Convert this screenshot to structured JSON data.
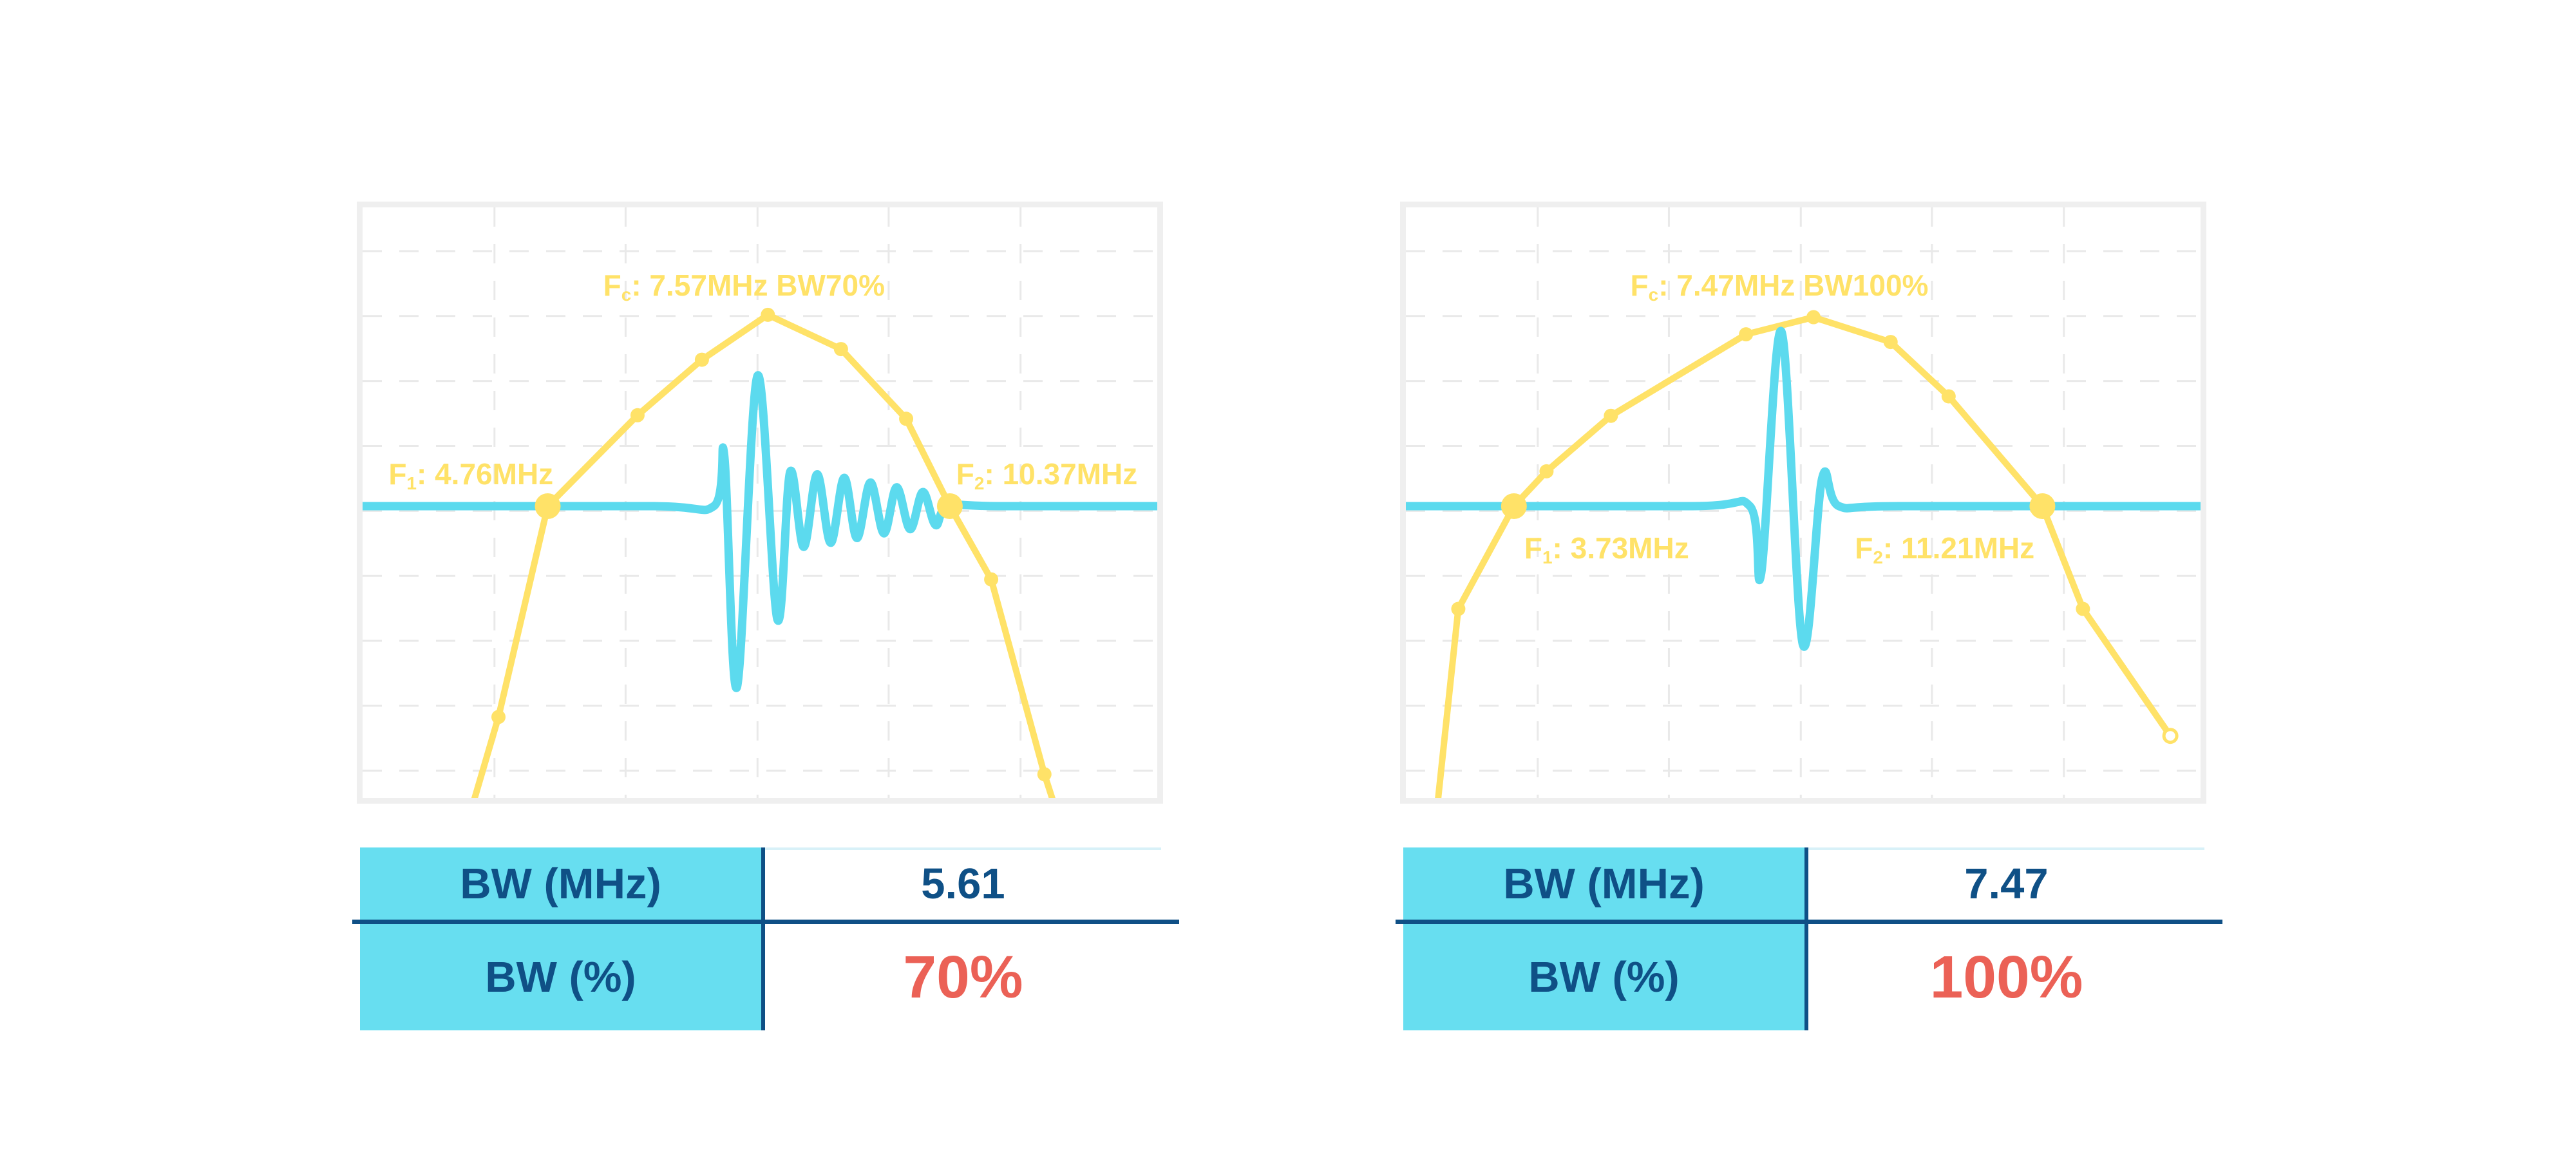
{
  "colors": {
    "background": "#FFFFFF",
    "spectrum_yellow": "#FFE268",
    "pulse_cyan": "#5CDAEE",
    "navy": "#0F5086",
    "percent_red": "#EB6156",
    "frame_gray": "#EFEFEF",
    "grid_gray": "#E9E9E9",
    "table_fill_cyan": "#67DEF0",
    "value_top_line": "#D8F1F8"
  },
  "charts": [
    {
      "fc": {
        "pre": "F",
        "sub": "c",
        "rest": ": 7.57MHz BW70%"
      },
      "f1": {
        "pre": "F",
        "sub": "1",
        "rest": ": 4.76MHz"
      },
      "f2": {
        "pre": "F",
        "sub": "2",
        "rest": ": 10.37MHz"
      },
      "table": {
        "bw_mhz_label": "BW (MHz)",
        "bw_mhz_value": "5.61",
        "bw_pct_label": "BW (%)",
        "bw_pct_value": "70%"
      }
    },
    {
      "fc": {
        "pre": "F",
        "sub": "c",
        "rest": ": 7.47MHz BW100%"
      },
      "f1": {
        "pre": "F",
        "sub": "1",
        "rest": ": 3.73MHz"
      },
      "f2": {
        "pre": "F",
        "sub": "2",
        "rest": ": 11.21MHz"
      },
      "table": {
        "bw_mhz_label": "BW (MHz)",
        "bw_mhz_value": "7.47",
        "bw_pct_label": "BW (%)",
        "bw_pct_value": "100%"
      }
    }
  ],
  "chart_data": [
    {
      "type": "line",
      "title": "Fc: 7.57MHz BW70%",
      "center_frequency_mhz": 7.57,
      "f1_mhz": 4.76,
      "f2_mhz": 10.37,
      "bandwidth_mhz": 5.61,
      "bandwidth_pct": 70,
      "grid": {
        "v_fracs": [
          0.166,
          0.331,
          0.497,
          0.662,
          0.828
        ],
        "h_fracs": [
          0.074,
          0.184,
          0.294,
          0.404,
          0.514,
          0.624,
          0.734,
          0.844,
          0.954
        ],
        "dashed": true
      },
      "baseline_y": 0.506,
      "series": [
        {
          "name": "frequency-spectrum",
          "color": "#FFE268",
          "points": [
            [
              0.128,
              1.06,
              null
            ],
            [
              0.171,
              0.863,
              "s"
            ],
            [
              0.233,
              0.506,
              "b"
            ],
            [
              0.346,
              0.352,
              "s"
            ],
            [
              0.427,
              0.258,
              "s"
            ],
            [
              0.51,
              0.182,
              "s"
            ],
            [
              0.602,
              0.24,
              "s"
            ],
            [
              0.684,
              0.358,
              "s"
            ],
            [
              0.739,
              0.506,
              "b"
            ],
            [
              0.791,
              0.63,
              "s"
            ],
            [
              0.858,
              0.96,
              "s"
            ],
            [
              0.882,
              1.06,
              null
            ]
          ]
        },
        {
          "name": "rf-pulse",
          "color": "#5CDAEE",
          "points": [
            [
              0.0,
              0.506
            ],
            [
              0.36,
              0.506
            ],
            [
              0.442,
              0.506
            ],
            [
              0.455,
              0.419
            ],
            [
              0.471,
              0.813
            ],
            [
              0.497,
              0.285
            ],
            [
              0.522,
              0.698
            ],
            [
              0.538,
              0.448
            ],
            [
              0.555,
              0.575
            ],
            [
              0.572,
              0.452
            ],
            [
              0.589,
              0.568
            ],
            [
              0.606,
              0.458
            ],
            [
              0.622,
              0.56
            ],
            [
              0.639,
              0.466
            ],
            [
              0.656,
              0.552
            ],
            [
              0.672,
              0.474
            ],
            [
              0.689,
              0.545
            ],
            [
              0.705,
              0.482
            ],
            [
              0.721,
              0.538
            ],
            [
              0.737,
              0.506
            ],
            [
              0.8,
              0.506
            ],
            [
              1.0,
              0.506
            ]
          ]
        }
      ],
      "annotations": {
        "fc": {
          "x": 0.48,
          "y": 0.104,
          "anchor": "center"
        },
        "f1": {
          "x": 0.24,
          "y": 0.423,
          "anchor": "right"
        },
        "f2": {
          "x": 0.747,
          "y": 0.423,
          "anchor": "left"
        }
      }
    },
    {
      "type": "line",
      "title": "Fc: 7.47MHz BW100%",
      "center_frequency_mhz": 7.47,
      "f1_mhz": 3.73,
      "f2_mhz": 11.21,
      "bandwidth_mhz": 7.47,
      "bandwidth_pct": 100,
      "grid": {
        "v_fracs": [
          0.166,
          0.331,
          0.497,
          0.662,
          0.828
        ],
        "h_fracs": [
          0.074,
          0.184,
          0.294,
          0.404,
          0.514,
          0.624,
          0.734,
          0.844,
          0.954
        ],
        "dashed": true
      },
      "baseline_y": 0.506,
      "series": [
        {
          "name": "frequency-spectrum",
          "color": "#FFE268",
          "points": [
            [
              0.036,
              1.06,
              null
            ],
            [
              0.066,
              0.68,
              "s"
            ],
            [
              0.136,
              0.506,
              "b"
            ],
            [
              0.177,
              0.447,
              "s"
            ],
            [
              0.258,
              0.353,
              "s"
            ],
            [
              0.428,
              0.215,
              "s"
            ],
            [
              0.513,
              0.186,
              "s"
            ],
            [
              0.61,
              0.228,
              "s"
            ],
            [
              0.683,
              0.32,
              "s"
            ],
            [
              0.801,
              0.506,
              "b"
            ],
            [
              0.852,
              0.68,
              "s"
            ],
            [
              0.962,
              0.895,
              "o"
            ]
          ]
        },
        {
          "name": "rf-pulse",
          "color": "#5CDAEE",
          "points": [
            [
              0.0,
              0.506
            ],
            [
              0.36,
              0.506
            ],
            [
              0.433,
              0.506
            ],
            [
              0.447,
              0.621
            ],
            [
              0.4725,
              0.21
            ],
            [
              0.4995,
              0.74
            ],
            [
              0.524,
              0.458
            ],
            [
              0.545,
              0.506
            ],
            [
              0.62,
              0.506
            ],
            [
              1.0,
              0.506
            ]
          ]
        }
      ],
      "annotations": {
        "fc": {
          "x": 0.47,
          "y": 0.104,
          "anchor": "center"
        },
        "f1": {
          "x": 0.149,
          "y": 0.548,
          "anchor": "left"
        },
        "f2": {
          "x": 0.565,
          "y": 0.548,
          "anchor": "left"
        }
      }
    }
  ]
}
